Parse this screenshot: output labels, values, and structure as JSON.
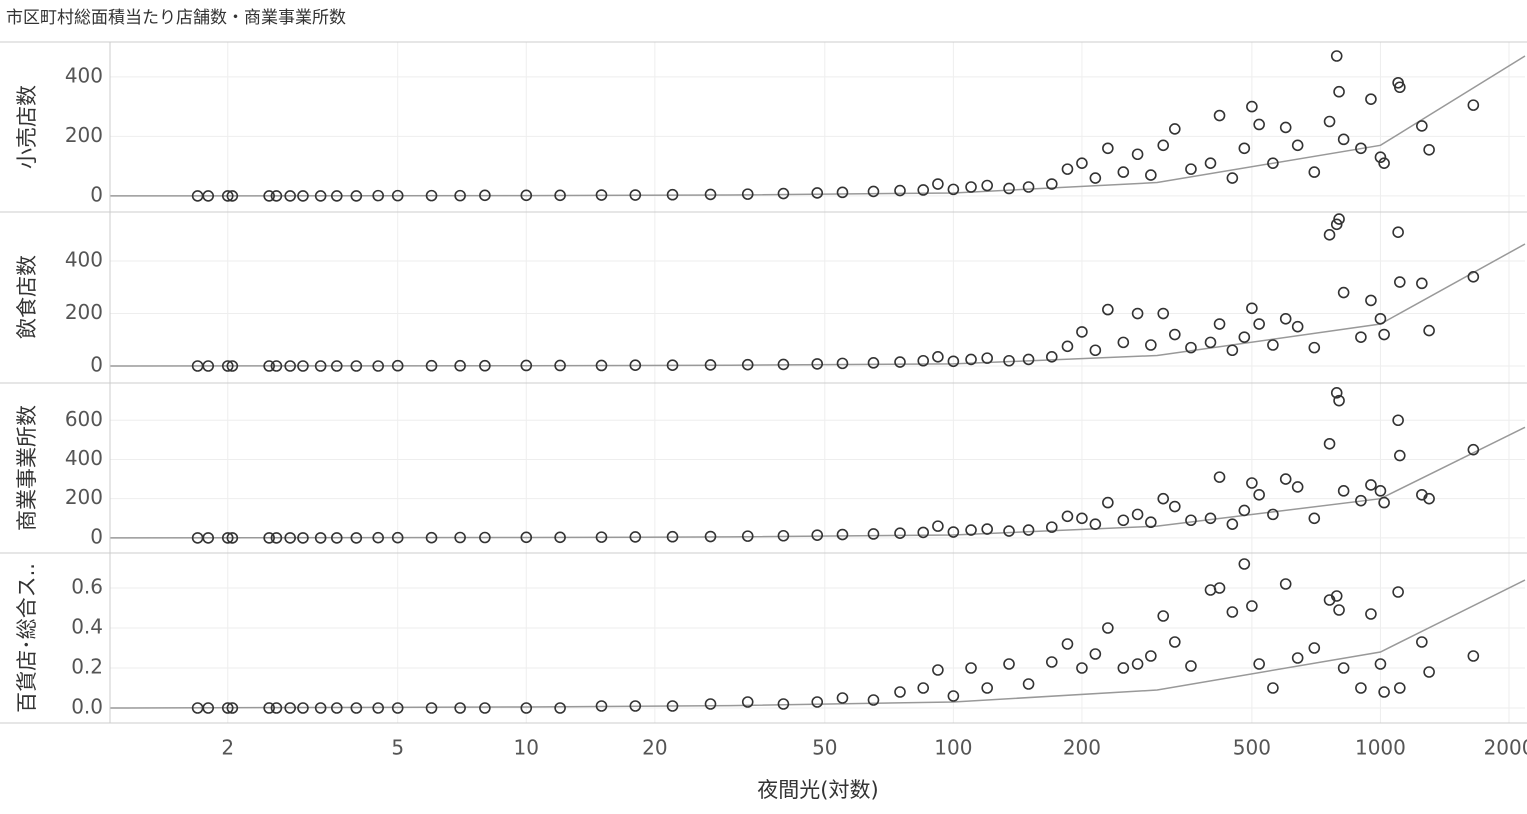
{
  "chart_data": {
    "type": "scatter",
    "title": "市区町村総面積当たり店舗数・商業事業所数",
    "x_label": "夜間光(対数)",
    "log_x": true,
    "xlim": [
      1.06,
      2180
    ],
    "xticks": [
      2,
      5,
      10,
      20,
      50,
      100,
      200,
      500,
      1000,
      2000
    ],
    "grid": true,
    "marker_color": "#333333",
    "trend_color": "#999999",
    "x": [
      1.7,
      1.8,
      2.0,
      2.05,
      2.5,
      2.6,
      2.8,
      3.0,
      3.3,
      3.6,
      4.0,
      4.5,
      5,
      6,
      7,
      8,
      10,
      12,
      15,
      18,
      22,
      27,
      33,
      40,
      48,
      55,
      65,
      75,
      85,
      92,
      100,
      110,
      120,
      135,
      150,
      170,
      185,
      200,
      215,
      230,
      250,
      270,
      290,
      310,
      330,
      360,
      400,
      420,
      450,
      480,
      500,
      520,
      560,
      600,
      640,
      700,
      760,
      790,
      800,
      820,
      900,
      950,
      1000,
      1020,
      1100,
      1110,
      1250,
      1300,
      1650
    ],
    "panels": [
      {
        "label": "小売店数",
        "ylim": [
          -54,
          517
        ],
        "yticks": [
          0,
          200,
          400
        ],
        "values": [
          0,
          0,
          0,
          0,
          0,
          0,
          0,
          0,
          0,
          0,
          0,
          1,
          1,
          1,
          1,
          2,
          2,
          2,
          3,
          3,
          4,
          5,
          6,
          8,
          10,
          12,
          15,
          18,
          20,
          40,
          22,
          30,
          35,
          25,
          30,
          40,
          90,
          110,
          60,
          160,
          80,
          140,
          70,
          170,
          225,
          90,
          110,
          270,
          60,
          160,
          300,
          240,
          110,
          230,
          170,
          80,
          250,
          470,
          350,
          190,
          160,
          325,
          130,
          110,
          380,
          365,
          235,
          155,
          305
        ],
        "trend": {
          "x": [
            1.06,
            10,
            30,
            100,
            300,
            1000,
            2180
          ],
          "values": [
            0,
            1,
            3,
            10,
            45,
            170,
            470
          ]
        }
      },
      {
        "label": "飲食店数",
        "ylim": [
          -61,
          587
        ],
        "yticks": [
          0,
          200,
          400
        ],
        "values": [
          0,
          0,
          0,
          0,
          0,
          0,
          0,
          0,
          0,
          0,
          0,
          0,
          1,
          1,
          1,
          1,
          2,
          2,
          2,
          3,
          3,
          4,
          5,
          6,
          8,
          10,
          12,
          15,
          20,
          35,
          18,
          25,
          30,
          20,
          25,
          35,
          75,
          130,
          60,
          215,
          90,
          200,
          80,
          200,
          120,
          70,
          90,
          160,
          60,
          110,
          220,
          160,
          80,
          180,
          150,
          70,
          500,
          540,
          560,
          280,
          110,
          250,
          180,
          120,
          510,
          320,
          315,
          135,
          340
        ],
        "trend": {
          "x": [
            1.06,
            10,
            30,
            100,
            300,
            1000,
            2180
          ],
          "values": [
            0,
            1,
            3,
            8,
            40,
            160,
            465
          ]
        }
      },
      {
        "label": "商業事業所数",
        "ylim": [
          -77,
          790
        ],
        "yticks": [
          0,
          200,
          400,
          600
        ],
        "values": [
          0,
          0,
          0,
          0,
          0,
          0,
          0,
          0,
          0,
          0,
          0,
          1,
          1,
          1,
          2,
          2,
          3,
          3,
          4,
          5,
          6,
          7,
          9,
          11,
          14,
          17,
          20,
          24,
          28,
          60,
          30,
          40,
          45,
          35,
          40,
          55,
          110,
          100,
          70,
          180,
          90,
          120,
          80,
          200,
          160,
          90,
          100,
          310,
          70,
          140,
          280,
          220,
          120,
          300,
          260,
          100,
          480,
          740,
          700,
          240,
          190,
          270,
          240,
          180,
          600,
          420,
          220,
          200,
          450
        ],
        "trend": {
          "x": [
            1.06,
            10,
            30,
            100,
            300,
            1000,
            2180
          ],
          "values": [
            0,
            2,
            5,
            15,
            60,
            200,
            564
          ]
        }
      },
      {
        "label": "百貨店･総合ス..",
        "ylim": [
          -0.075,
          0.775
        ],
        "yticks": [
          {
            "value": 0,
            "label": "0.0"
          },
          0.2,
          0.4,
          0.6
        ],
        "values": [
          0,
          0,
          0,
          0,
          0,
          0,
          0,
          0,
          0,
          0,
          0,
          0,
          0,
          0,
          0,
          0,
          0,
          0,
          0.01,
          0.01,
          0.01,
          0.02,
          0.03,
          0.02,
          0.03,
          0.05,
          0.04,
          0.08,
          0.1,
          0.19,
          0.06,
          0.2,
          0.1,
          0.22,
          0.12,
          0.23,
          0.32,
          0.2,
          0.27,
          0.4,
          0.2,
          0.22,
          0.26,
          0.46,
          0.33,
          0.21,
          0.59,
          0.6,
          0.48,
          0.72,
          0.51,
          0.22,
          0.1,
          0.62,
          0.25,
          0.3,
          0.54,
          0.56,
          0.49,
          0.2,
          0.1,
          0.47,
          0.22,
          0.08,
          0.58,
          0.1,
          0.33,
          0.18,
          0.26
        ],
        "trend": {
          "x": [
            1.06,
            10,
            30,
            100,
            300,
            1000,
            2180
          ],
          "values": [
            0,
            0.005,
            0.012,
            0.03,
            0.09,
            0.28,
            0.64
          ]
        }
      }
    ]
  }
}
